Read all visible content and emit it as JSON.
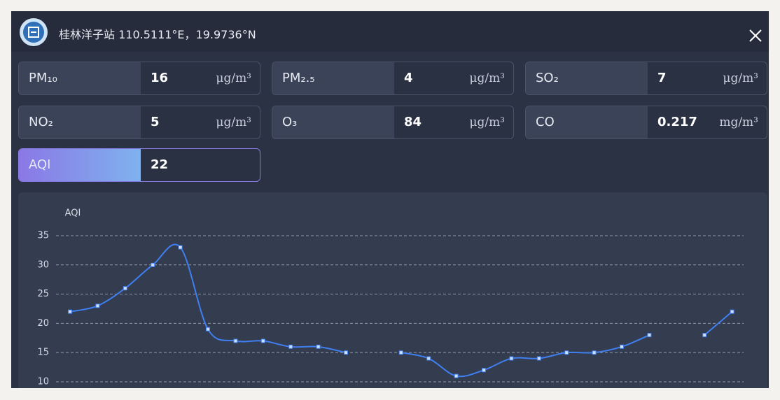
{
  "header": {
    "title": "桂林洋子站 110.5111°E，19.9736°N"
  },
  "readings": [
    {
      "label": "PM₁₀",
      "value": 16,
      "unit": "μg/m³"
    },
    {
      "label": "PM₂.₅",
      "value": 4,
      "unit": "μg/m³"
    },
    {
      "label": "SO₂",
      "value": 7,
      "unit": "μg/m³"
    },
    {
      "label": "NO₂",
      "value": 5,
      "unit": "μg/m³"
    },
    {
      "label": "O₃",
      "value": 84,
      "unit": "μg/m³"
    },
    {
      "label": "CO",
      "value": 0.217,
      "unit": "mg/m³"
    }
  ],
  "aqi": {
    "label": "AQI",
    "value": 22
  },
  "chart_data": {
    "type": "line",
    "y_label": "AQI",
    "categories": [
      null,
      null,
      null,
      null,
      null,
      null,
      null,
      null,
      null,
      null,
      null,
      null,
      null,
      null,
      null,
      null,
      null,
      null,
      null,
      null,
      null,
      null,
      null,
      null,
      null
    ],
    "series": [
      {
        "color": "#3f7ff0",
        "values": [
          22,
          23,
          26,
          30,
          33,
          19,
          17,
          17,
          16,
          16,
          15,
          null,
          15,
          14,
          11,
          12,
          14,
          14,
          15,
          15,
          16,
          18,
          null,
          18,
          22
        ]
      }
    ],
    "ylim": [
      10,
      35
    ],
    "yticks": [
      10,
      15,
      20,
      25,
      30,
      35
    ],
    "grid": true
  }
}
